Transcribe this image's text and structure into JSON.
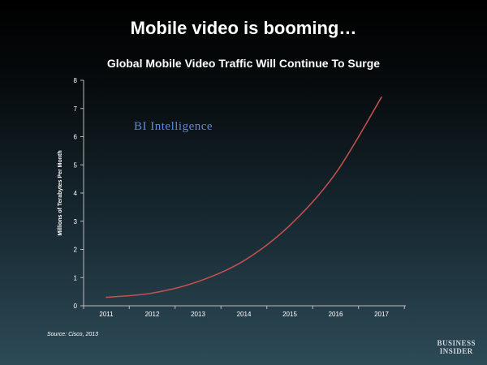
{
  "slide_title": "Mobile video is booming…",
  "watermark": "BI Intelligence",
  "source": "Source: Cisco, 2013",
  "logo": {
    "line1": "BUSINESS",
    "line2": "INSIDER"
  },
  "colors": {
    "line": "#c0504d",
    "axis": "#bbbbbb",
    "watermark": "#5f89d6"
  },
  "chart_data": {
    "type": "line",
    "title": "Global Mobile Video Traffic Will Continue To Surge",
    "xlabel": "",
    "ylabel": "Millions of Terabytes Per Month",
    "x": [
      "2011",
      "2012",
      "2013",
      "2014",
      "2015",
      "2016",
      "2017"
    ],
    "y_ticks": [
      "0",
      "1",
      "2",
      "3",
      "4",
      "5",
      "6",
      "7",
      "8"
    ],
    "ylim": [
      0,
      8
    ],
    "grid": false,
    "series": [
      {
        "values": [
          0.3,
          0.45,
          0.86,
          1.6,
          2.85,
          4.7,
          7.4
        ]
      }
    ]
  }
}
